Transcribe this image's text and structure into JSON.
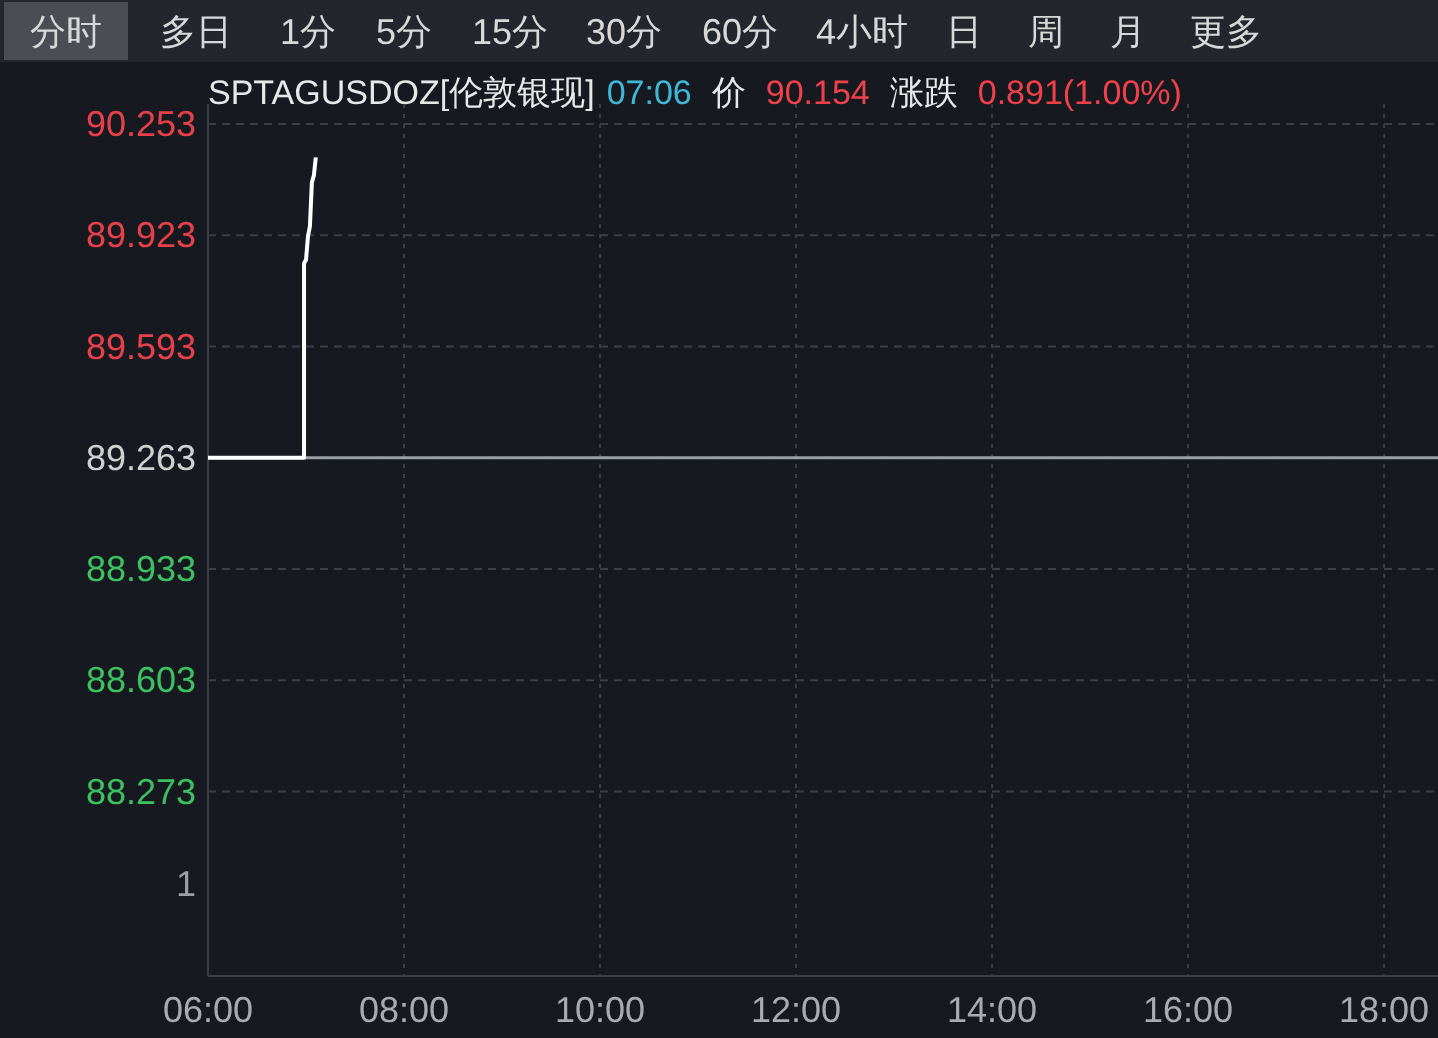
{
  "chart_data": {
    "type": "line",
    "title": "SPTAGUSDOZ[伦敦银现]",
    "annotations": [
      "分时",
      "多日",
      "1分",
      "5分",
      "15分",
      "30分",
      "60分",
      "4小时",
      "日",
      "周",
      "月",
      "更多",
      "07:06",
      "价",
      "90.154",
      "涨跌",
      "0.891(1.00%)",
      "1"
    ],
    "x": [
      6,
      6.98,
      6.98,
      7.0,
      7.02,
      7.04,
      7.06,
      7.08,
      7.1
    ],
    "series": [
      {
        "color": "#ffffff",
        "values": [
          89.263,
          89.263,
          89.84,
          89.85,
          89.92,
          89.95,
          90.08,
          90.1,
          90.154
        ]
      }
    ],
    "xlim": [
      6,
      18.55
    ],
    "xticks": [
      {
        "value": 6,
        "label": "06:00"
      },
      {
        "value": 8,
        "label": "08:00"
      },
      {
        "value": 10,
        "label": "10:00"
      },
      {
        "value": 12,
        "label": "12:00"
      },
      {
        "value": 14,
        "label": "14:00"
      },
      {
        "value": 16,
        "label": "16:00"
      },
      {
        "value": 18,
        "label": "18:00"
      }
    ],
    "ylim": [
      87.726,
      90.253
    ],
    "yticks": [
      90.253,
      89.923,
      89.593,
      89.263,
      88.933,
      88.603,
      88.273
    ],
    "ref_lines": [
      {
        "axis": "y",
        "value": 89.263,
        "color": "#9a9ea6",
        "line_style": "solid"
      }
    ],
    "grid": true,
    "line_style": "solid",
    "marker": "none"
  }
}
